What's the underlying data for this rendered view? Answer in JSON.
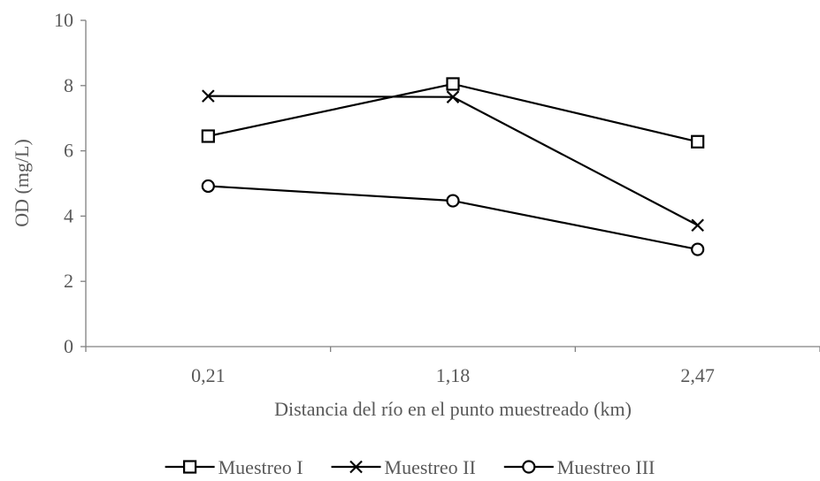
{
  "chart_data": {
    "type": "line",
    "categories": [
      "0,21",
      "1,18",
      "2,47"
    ],
    "ylabel": "OD (mg/L)",
    "xlabel": "Distancia del río en el punto muestreado (km)",
    "ylim": [
      0,
      10
    ],
    "yticks": [
      0,
      2,
      4,
      6,
      8,
      10
    ],
    "grid": false,
    "legend_position": "bottom",
    "series": [
      {
        "name": "Muestreo I",
        "marker": "square",
        "values": [
          6.45,
          8.05,
          6.28
        ]
      },
      {
        "name": "Muestreo II",
        "marker": "x",
        "values": [
          7.68,
          7.65,
          3.72
        ]
      },
      {
        "name": "Muestreo III",
        "marker": "circle",
        "values": [
          4.92,
          4.47,
          2.98
        ]
      }
    ],
    "colors": {
      "line": "#000000",
      "axis": "#808080",
      "text": "#595959"
    }
  }
}
